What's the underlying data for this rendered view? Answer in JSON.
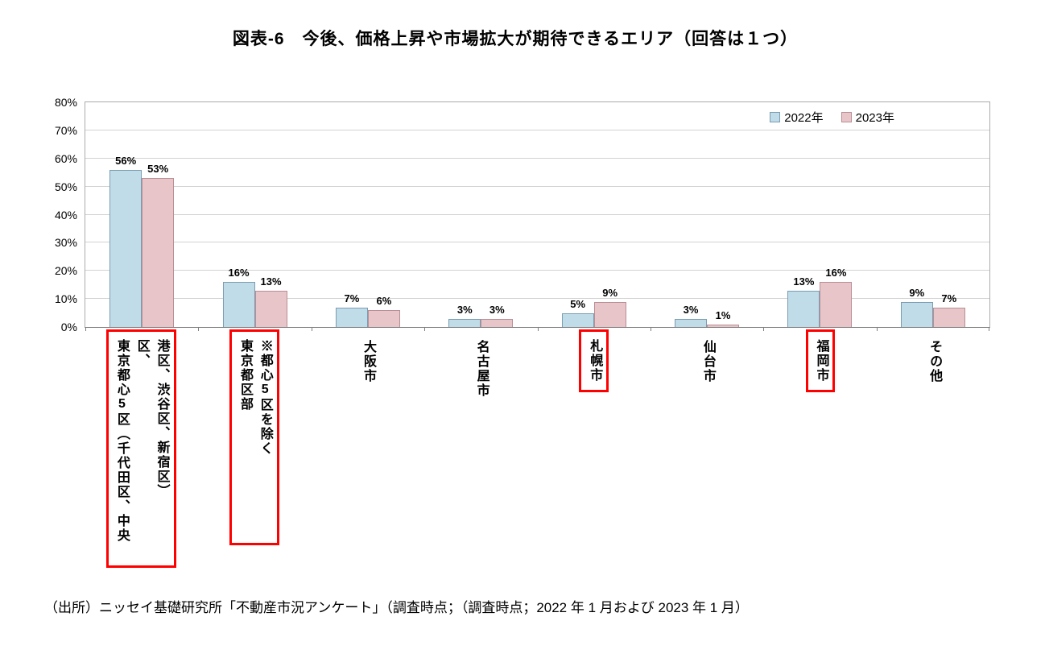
{
  "title": "図表-6　今後、価格上昇や市場拡大が期待できるエリア（回答は１つ）",
  "source": "（出所）ニッセイ基礎研究所「不動産市況アンケート」（調査時点；（調査時点；2022 年 1 月および 2023 年 1 月）",
  "colors": {
    "series_2022_fill": "#BFDCE8",
    "series_2022_border": "#7A9DB2",
    "series_2023_fill": "#E7C5C9",
    "series_2023_border": "#BA8E95",
    "highlight_box": "#FF0000",
    "gridline": "#D2D2D2",
    "axis": "#7F7F7F"
  },
  "chart_data": {
    "type": "bar",
    "title": "図表-6　今後、価格上昇や市場拡大が期待できるエリア（回答は１つ）",
    "categories": [
      "東京都心5区（千代田区、中央区、\n港区、渋谷区、新宿区）",
      "東京都区部\n※都心5区を除く",
      "大阪市",
      "名古屋市",
      "札幌市",
      "仙台市",
      "福岡市",
      "その他"
    ],
    "series": [
      {
        "name": "2022年",
        "values": [
          56,
          16,
          7,
          3,
          5,
          3,
          13,
          9
        ]
      },
      {
        "name": "2023年",
        "values": [
          53,
          13,
          6,
          3,
          9,
          1,
          16,
          7
        ]
      }
    ],
    "value_label_format": "percent",
    "xlabel": "",
    "ylabel": "",
    "ylim": [
      0,
      80
    ],
    "ytick_step": 10,
    "ytick_labels": [
      "0%",
      "10%",
      "20%",
      "30%",
      "40%",
      "50%",
      "60%",
      "70%",
      "80%"
    ],
    "grid": true,
    "legend_position": "top-right",
    "highlighted_category_indexes": [
      0,
      1,
      4,
      6
    ]
  }
}
